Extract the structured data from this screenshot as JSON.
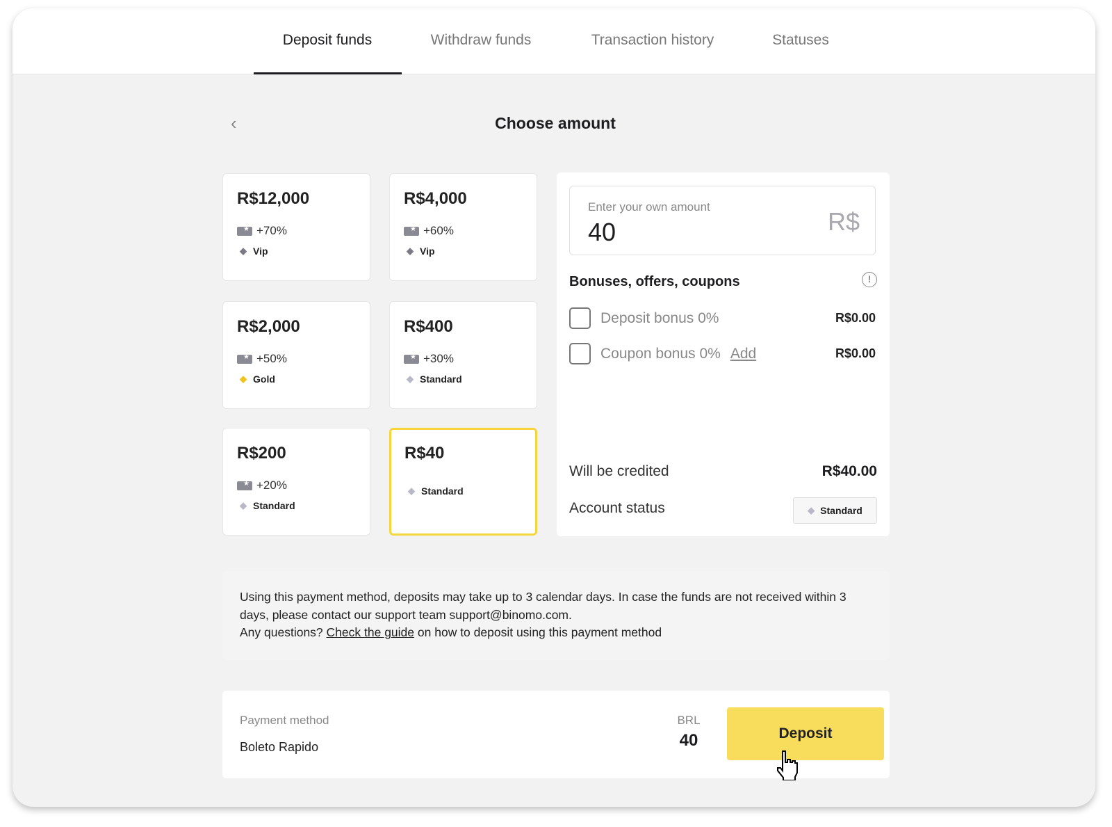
{
  "tabs": [
    {
      "label": "Deposit funds",
      "active": true
    },
    {
      "label": "Withdraw funds"
    },
    {
      "label": "Transaction history"
    },
    {
      "label": "Statuses"
    }
  ],
  "page_title": "Choose amount",
  "amount_options": [
    {
      "amount": "R$12,000",
      "bonus": "+70%",
      "status": "Vip"
    },
    {
      "amount": "R$4,000",
      "bonus": "+60%",
      "status": "Vip"
    },
    {
      "amount": "R$2,000",
      "bonus": "+50%",
      "status": "Gold"
    },
    {
      "amount": "R$400",
      "bonus": "+30%",
      "status": "Standard"
    },
    {
      "amount": "R$200",
      "bonus": "+20%",
      "status": "Standard"
    },
    {
      "amount": "R$40",
      "status": "Standard",
      "selected": true
    }
  ],
  "custom_amount": {
    "placeholder": "Enter your own amount",
    "value": "40",
    "currency": "R$"
  },
  "bonuses": {
    "title": "Bonuses, offers, coupons",
    "items": [
      {
        "label": "Deposit bonus 0%",
        "value": "R$0.00"
      },
      {
        "label": "Coupon bonus 0%",
        "link": "Add",
        "value": "R$0.00"
      }
    ]
  },
  "summary": {
    "credited_label": "Will be credited",
    "credited_value": "R$40.00",
    "status_label": "Account status",
    "status_value": "Standard"
  },
  "notice": {
    "line1": "Using this payment method, deposits may take up to 3 calendar days. In case the funds are not received within 3 days, please contact our support team support@binomo.com.",
    "q": "Any questions?",
    "link": "Check the guide",
    "rest": "on how to deposit using this payment method"
  },
  "payment": {
    "label": "Payment method",
    "value": "Boleto Rapido",
    "currency": "BRL",
    "amount": "40",
    "button": "Deposit"
  },
  "colors": {
    "accent": "#f8dc5c",
    "selected_border": "#f5d63d",
    "gold": "#f0c21b"
  }
}
